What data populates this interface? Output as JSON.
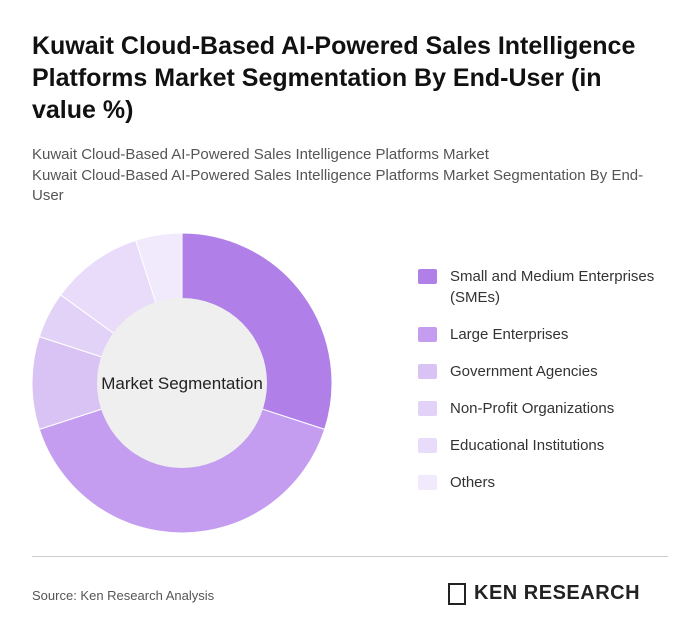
{
  "chart_data": {
    "type": "pie",
    "title": "Kuwait Cloud-Based AI-Powered Sales Intelligence Platforms Market Segmentation By End-User (in value %)",
    "subtitles": [
      "Kuwait Cloud-Based AI-Powered Sales Intelligence Platforms Market",
      "Kuwait Cloud-Based AI-Powered Sales Intelligence Platforms Market Segmentation By End-User"
    ],
    "center_label": "Market Segmentation",
    "categories": [
      "Small and Medium Enterprises (SMEs)",
      "Large Enterprises",
      "Government Agencies",
      "Non-Profit Organizations",
      "Educational Institutions",
      "Others"
    ],
    "values": [
      30,
      40,
      10,
      5,
      10,
      5
    ],
    "colors": [
      "#b07fe8",
      "#c49df0",
      "#d9c3f5",
      "#e2d2f8",
      "#e9dcfa",
      "#f1e9fc"
    ],
    "source": "Source: Ken Research Analysis",
    "logo": "KEN RESEARCH"
  }
}
